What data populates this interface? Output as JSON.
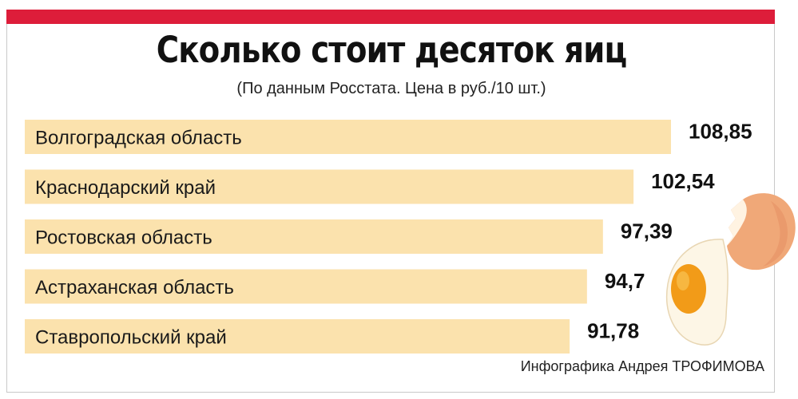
{
  "header": {
    "title": "Сколько стоит десяток яиц",
    "subtitle": "(По данным Росстата. Цена в руб./10 шт.)"
  },
  "footer": {
    "credit": "Инфографика Андрея ТРОФИМОВА"
  },
  "colors": {
    "accent_bar": "#dd1d3a",
    "bar_fill": "#fbe2ad",
    "egg_shell": "#f0a878",
    "yolk": "#f29b18"
  },
  "illustration": {
    "icon": "cracked-egg-icon"
  },
  "chart_data": {
    "type": "bar",
    "orientation": "horizontal",
    "title": "Сколько стоит десяток яиц",
    "subtitle": "(По данным Росстата. Цена в руб./10 шт.)",
    "categories": [
      "Волгоградская область",
      "Краснодарский край",
      "Ростовская область",
      "Астраханская область",
      "Ставропольский край"
    ],
    "values": [
      108.85,
      102.54,
      97.39,
      94.7,
      91.78
    ],
    "value_labels": [
      "108,85",
      "102,54",
      "97,39",
      "94,7",
      "91,78"
    ],
    "xlabel": "",
    "ylabel": "",
    "grid": false,
    "legend": "none"
  }
}
